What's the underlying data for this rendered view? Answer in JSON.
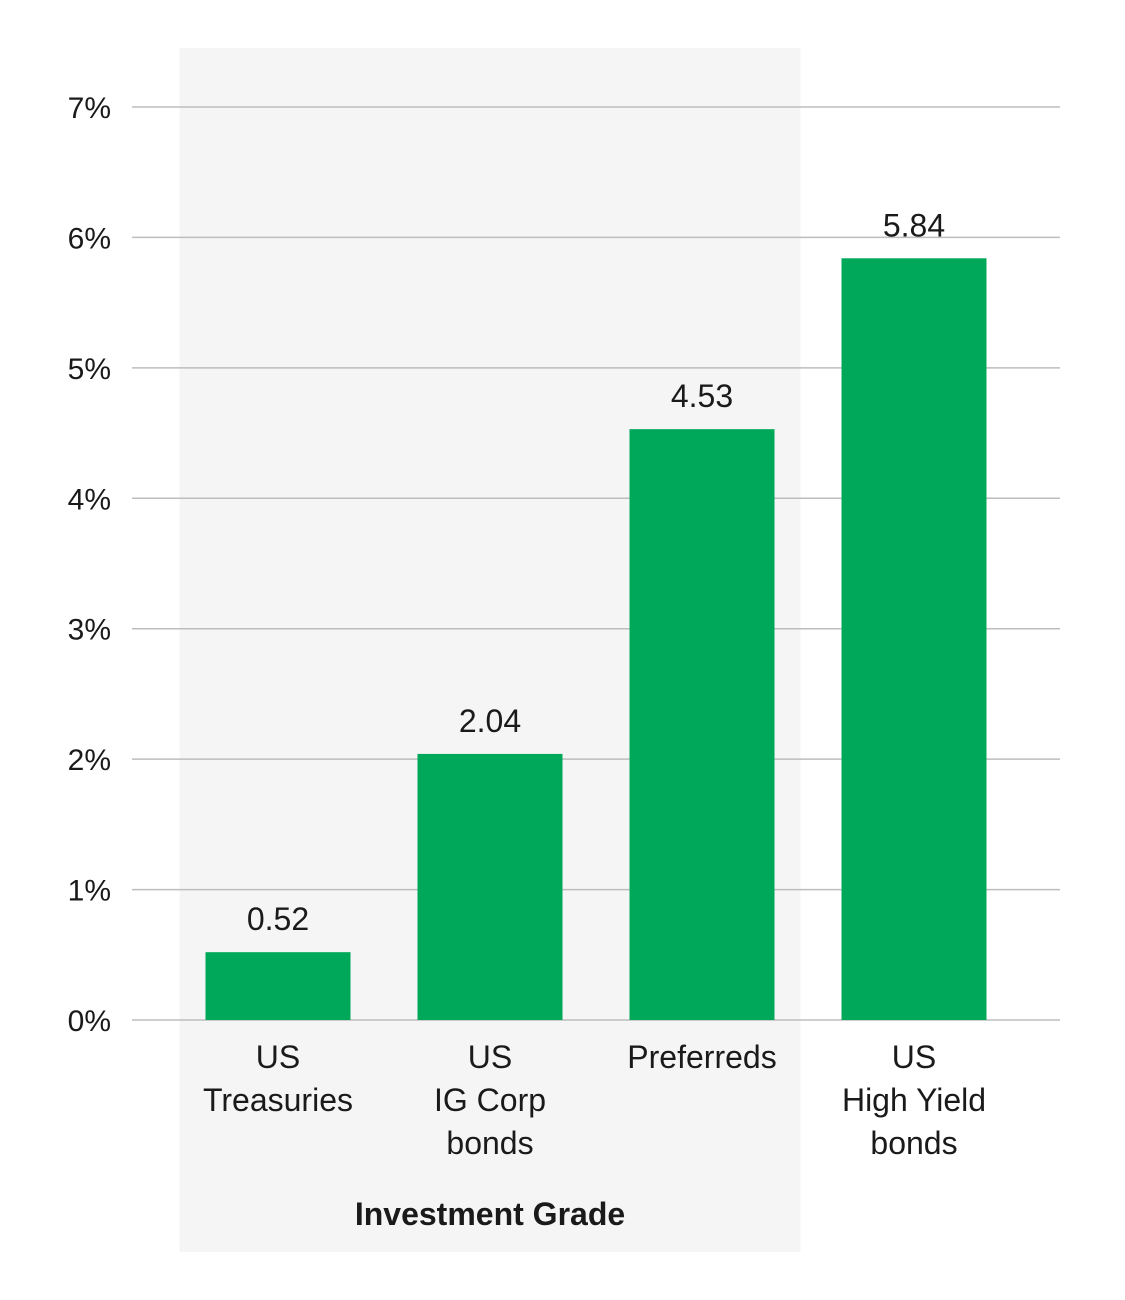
{
  "chart_data": {
    "type": "bar",
    "categories": [
      [
        "US",
        "Treasuries"
      ],
      [
        "US",
        "IG Corp",
        "bonds"
      ],
      [
        "Preferreds"
      ],
      [
        "US",
        "High Yield",
        "bonds"
      ]
    ],
    "values": [
      0.52,
      2.04,
      4.53,
      5.84
    ],
    "value_labels": [
      "0.52",
      "2.04",
      "4.53",
      "5.84"
    ],
    "yticks": [
      0,
      1,
      2,
      3,
      4,
      5,
      6,
      7
    ],
    "ytick_labels": [
      "0%",
      "1%",
      "2%",
      "3%",
      "4%",
      "5%",
      "6%",
      "7%"
    ],
    "ylim": [
      0,
      7
    ],
    "grid": true,
    "bar_color": "#00a859",
    "group_band": {
      "label": "Investment Grade",
      "categories": [
        0,
        1,
        2
      ],
      "color": "#f5f5f5"
    },
    "title": "",
    "xlabel": "",
    "ylabel": ""
  }
}
